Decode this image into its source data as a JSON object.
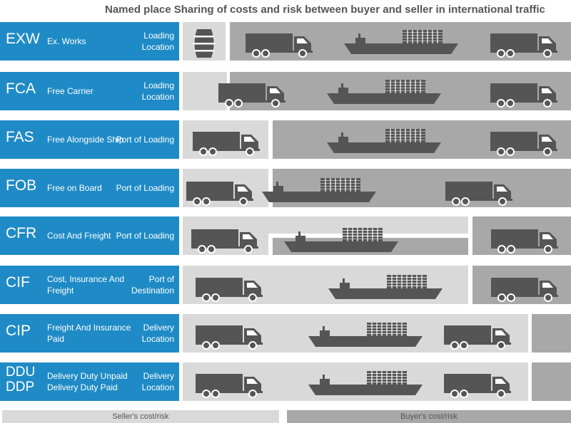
{
  "title": "Named place Sharing of costs and risk between buyer and seller in international traffic",
  "colors": {
    "label_bg": "#1f8bc6",
    "seller": "#d9d9d9",
    "buyer": "#a8a8a8",
    "icon": "#555555"
  },
  "rows": [
    {
      "code": "EXW",
      "name": "Ex. Works",
      "place": "Loading Location",
      "icons": [
        "barrel-icon",
        "truck-icon",
        "ship-icon",
        "truck-icon"
      ]
    },
    {
      "code": "FCA",
      "name": "Free Carrier",
      "place": "Loading Location",
      "icons": [
        "truck-icon",
        "ship-icon",
        "truck-icon"
      ]
    },
    {
      "code": "FAS",
      "name": "Free Alongside Ship",
      "place": "Port of Loading",
      "icons": [
        "truck-icon",
        "ship-icon",
        "truck-icon"
      ]
    },
    {
      "code": "FOB",
      "name": "Free on Board",
      "place": "Port of Loading",
      "icons": [
        "truck-icon",
        "ship-icon",
        "truck-icon"
      ]
    },
    {
      "code": "CFR",
      "name": "Cost And Freight",
      "place": "Port of Loading",
      "icons": [
        "truck-icon",
        "ship-icon",
        "truck-icon"
      ]
    },
    {
      "code": "CIF",
      "name": "Cost, Insurance And Freight",
      "place": "Port of Destination",
      "icons": [
        "truck-icon",
        "ship-icon",
        "truck-icon"
      ]
    },
    {
      "code": "CIP",
      "name": "Freight And Insurance Paid",
      "place": "Delivery Location",
      "icons": [
        "truck-icon",
        "ship-icon",
        "truck-icon"
      ]
    },
    {
      "code": "DDU DDP",
      "name": "Delivery Duty Unpaid Delivery Duty Paid",
      "place": "Delivery Location",
      "icons": [
        "truck-icon",
        "ship-icon",
        "truck-icon"
      ]
    }
  ],
  "legend": {
    "seller": "Seller's cost/risk",
    "buyer": "Buyer's cost/risk"
  }
}
